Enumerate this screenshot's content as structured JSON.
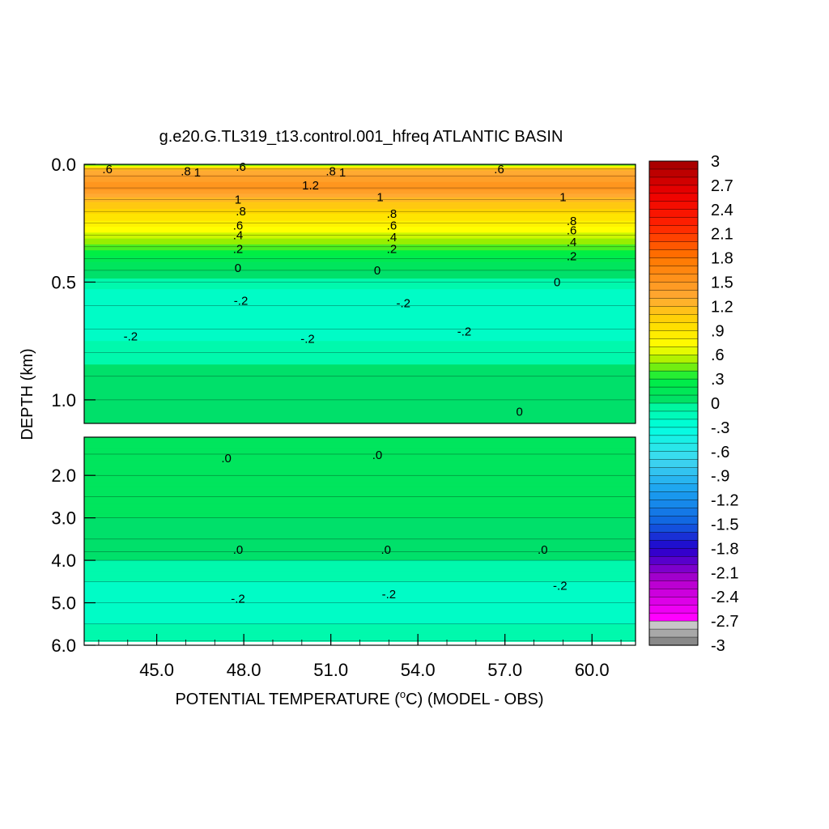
{
  "chart_data": {
    "type": "heatmap",
    "title": "g.e20.G.TL319_t13.control.001_hfreq ATLANTIC BASIN",
    "xlabel_prefix": "POTENTIAL TEMPERATURE (",
    "xlabel_unit_sup": "o",
    "xlabel_suffix": "C) (MODEL - OBS)",
    "ylabel": "DEPTH (km)",
    "xlim": [
      42.5,
      61.5
    ],
    "x_ticks": [
      {
        "value": 45,
        "label": "45.0"
      },
      {
        "value": 48,
        "label": "48.0"
      },
      {
        "value": 51,
        "label": "51.0"
      },
      {
        "value": 54,
        "label": "54.0"
      },
      {
        "value": 57,
        "label": "57.0"
      },
      {
        "value": 60,
        "label": "60.0"
      }
    ],
    "upper_panel": {
      "ylim": [
        0,
        1.1
      ],
      "y_ticks": [
        {
          "value": 0.0,
          "label": "0.0"
        },
        {
          "value": 0.5,
          "label": "0.5"
        },
        {
          "value": 1.0,
          "label": "1.0"
        }
      ],
      "depth_levels_km": [
        0,
        0.02,
        0.05,
        0.1,
        0.15,
        0.2,
        0.25,
        0.3,
        0.35,
        0.4,
        0.45,
        0.5,
        0.6,
        0.7,
        0.8,
        0.9,
        1.0,
        1.1
      ],
      "profile_values": [
        0.3,
        1.2,
        1.4,
        1.5,
        1.2,
        1.0,
        0.8,
        0.6,
        0.4,
        0.2,
        0.05,
        -0.1,
        -0.25,
        -0.2,
        -0.1,
        0.0,
        0.02,
        0.05
      ]
    },
    "lower_panel": {
      "ylim": [
        1.1,
        6.0
      ],
      "y_ticks": [
        {
          "value": 2.0,
          "label": "2.0"
        },
        {
          "value": 3.0,
          "label": "3.0"
        },
        {
          "value": 4.0,
          "label": "4.0"
        },
        {
          "value": 5.0,
          "label": "5.0"
        },
        {
          "value": 6.0,
          "label": "6.0"
        }
      ],
      "depth_levels_km": [
        1.1,
        1.5,
        2.0,
        2.5,
        3.0,
        3.5,
        3.8,
        4.0,
        4.5,
        5.0,
        5.5,
        5.9,
        6.0
      ],
      "profile_values": [
        0.05,
        0.08,
        0.1,
        0.08,
        0.05,
        0.02,
        0.0,
        -0.05,
        -0.15,
        -0.2,
        -0.15,
        -0.1,
        -0.1
      ]
    },
    "contour_labels": [
      {
        "text": ".6",
        "x": 43.3,
        "depth": 0.02
      },
      {
        "text": ".8",
        "x": 46.0,
        "depth": 0.03
      },
      {
        "text": "1",
        "x": 46.4,
        "depth": 0.035
      },
      {
        "text": ".6",
        "x": 47.9,
        "depth": 0.01
      },
      {
        "text": "1.2",
        "x": 50.3,
        "depth": 0.09
      },
      {
        "text": ".8",
        "x": 51.0,
        "depth": 0.03
      },
      {
        "text": "1",
        "x": 51.4,
        "depth": 0.035
      },
      {
        "text": ".6",
        "x": 56.8,
        "depth": 0.02
      },
      {
        "text": "1",
        "x": 47.8,
        "depth": 0.15
      },
      {
        "text": ".8",
        "x": 47.9,
        "depth": 0.2
      },
      {
        "text": ".6",
        "x": 47.8,
        "depth": 0.26
      },
      {
        "text": ".4",
        "x": 47.8,
        "depth": 0.3
      },
      {
        "text": ".2",
        "x": 47.8,
        "depth": 0.36
      },
      {
        "text": "0",
        "x": 47.8,
        "depth": 0.44
      },
      {
        "text": "1",
        "x": 52.7,
        "depth": 0.14
      },
      {
        "text": ".8",
        "x": 53.1,
        "depth": 0.21
      },
      {
        "text": ".6",
        "x": 53.1,
        "depth": 0.26
      },
      {
        "text": ".4",
        "x": 53.1,
        "depth": 0.31
      },
      {
        "text": ".2",
        "x": 53.1,
        "depth": 0.36
      },
      {
        "text": "0",
        "x": 52.6,
        "depth": 0.45
      },
      {
        "text": "1",
        "x": 59.0,
        "depth": 0.14
      },
      {
        "text": ".8",
        "x": 59.3,
        "depth": 0.24
      },
      {
        "text": ".6",
        "x": 59.3,
        "depth": 0.28
      },
      {
        "text": ".4",
        "x": 59.3,
        "depth": 0.33
      },
      {
        "text": ".2",
        "x": 59.3,
        "depth": 0.39
      },
      {
        "text": "0",
        "x": 58.8,
        "depth": 0.5
      },
      {
        "text": "-.2",
        "x": 47.9,
        "depth": 0.58
      },
      {
        "text": "-.2",
        "x": 53.5,
        "depth": 0.59
      },
      {
        "text": "-.2",
        "x": 44.1,
        "depth": 0.73
      },
      {
        "text": "-.2",
        "x": 50.2,
        "depth": 0.74
      },
      {
        "text": "-.2",
        "x": 55.6,
        "depth": 0.71
      },
      {
        "text": "0",
        "x": 57.5,
        "depth": 1.05
      },
      {
        "text": ".0",
        "x": 47.4,
        "depth": 1.6
      },
      {
        "text": ".0",
        "x": 52.6,
        "depth": 1.52
      },
      {
        "text": ".0",
        "x": 47.8,
        "depth": 3.75
      },
      {
        "text": ".0",
        "x": 52.9,
        "depth": 3.75
      },
      {
        "text": ".0",
        "x": 58.3,
        "depth": 3.75
      },
      {
        "text": "-.2",
        "x": 47.8,
        "depth": 4.9
      },
      {
        "text": "-.2",
        "x": 53.0,
        "depth": 4.8
      },
      {
        "text": "-.2",
        "x": 58.9,
        "depth": 4.6
      }
    ],
    "colorbar": {
      "min": -3.0,
      "max": 3.0,
      "step": 0.1,
      "labels": [
        "3",
        "2.7",
        "2.4",
        "2.1",
        "1.8",
        "1.5",
        "1.2",
        ".9",
        ".6",
        ".3",
        "0",
        "-.3",
        "-.6",
        "-.9",
        "-1.2",
        "-1.5",
        "-1.8",
        "-2.1",
        "-2.4",
        "-2.7",
        "-3"
      ],
      "color_stops": [
        {
          "v": -3.0,
          "c": "#7a7a7a"
        },
        {
          "v": -2.7,
          "c": "#d6d6d6"
        },
        {
          "v": -2.65,
          "c": "#ff00ff"
        },
        {
          "v": -2.2,
          "c": "#b300cc"
        },
        {
          "v": -1.8,
          "c": "#2200cc"
        },
        {
          "v": -1.5,
          "c": "#1060e0"
        },
        {
          "v": -1.1,
          "c": "#1aa0f0"
        },
        {
          "v": -0.7,
          "c": "#40d8f0"
        },
        {
          "v": -0.3,
          "c": "#00ffe0"
        },
        {
          "v": -0.05,
          "c": "#00f7a0"
        },
        {
          "v": 0.0,
          "c": "#00e06a"
        },
        {
          "v": 0.3,
          "c": "#00ee44"
        },
        {
          "v": 0.5,
          "c": "#98ee00"
        },
        {
          "v": 0.7,
          "c": "#ffff00"
        },
        {
          "v": 1.0,
          "c": "#ffd800"
        },
        {
          "v": 1.3,
          "c": "#ffaa33"
        },
        {
          "v": 1.8,
          "c": "#ff7700"
        },
        {
          "v": 2.2,
          "c": "#ff2200"
        },
        {
          "v": 2.6,
          "c": "#ee0000"
        },
        {
          "v": 3.0,
          "c": "#a00000"
        }
      ]
    }
  }
}
